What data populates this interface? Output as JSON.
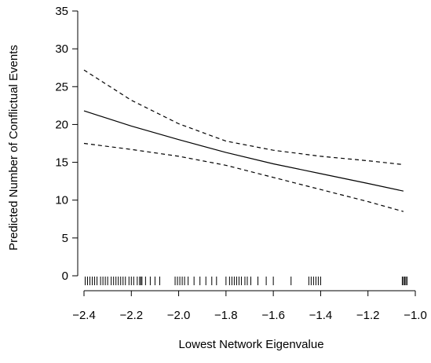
{
  "chart_data": {
    "type": "line",
    "title": "",
    "xlabel": "Lowest Network Eigenvalue",
    "ylabel": "Predicted Number of Conflictual Events",
    "xlim": [
      -2.45,
      -0.98
    ],
    "ylim": [
      0,
      35
    ],
    "grid": false,
    "legend": "none",
    "x_ticks": [
      -2.4,
      -2.2,
      -2.0,
      -1.8,
      -1.6,
      -1.4,
      -1.2,
      -1.0
    ],
    "x_tick_labels": [
      "−2.4",
      "−2.2",
      "−2.0",
      "−1.8",
      "−1.6",
      "−1.4",
      "−1.2",
      "−1.0"
    ],
    "y_ticks": [
      0,
      5,
      10,
      15,
      20,
      25,
      30,
      35
    ],
    "y_tick_labels": [
      "0",
      "5",
      "10",
      "15",
      "20",
      "25",
      "30",
      "35"
    ],
    "series": [
      {
        "style": "solid",
        "x": [
          -2.4,
          -2.2,
          -2.0,
          -1.8,
          -1.6,
          -1.4,
          -1.2,
          -1.05
        ],
        "y": [
          21.8,
          19.8,
          18.0,
          16.3,
          14.8,
          13.5,
          12.2,
          11.2
        ]
      },
      {
        "style": "dashed",
        "x": [
          -2.4,
          -2.2,
          -2.0,
          -1.8,
          -1.6,
          -1.4,
          -1.2,
          -1.05
        ],
        "y": [
          27.2,
          23.2,
          20.1,
          17.8,
          16.6,
          15.8,
          15.2,
          14.7
        ]
      },
      {
        "style": "dashed",
        "x": [
          -2.4,
          -2.2,
          -2.0,
          -1.8,
          -1.6,
          -1.4,
          -1.2,
          -1.05
        ],
        "y": [
          17.5,
          16.7,
          15.8,
          14.6,
          13.0,
          11.4,
          9.8,
          8.5
        ]
      }
    ],
    "rug": [
      -2.395,
      -2.385,
      -2.375,
      -2.365,
      -2.355,
      -2.345,
      -2.33,
      -2.32,
      -2.31,
      -2.3,
      -2.285,
      -2.275,
      -2.265,
      -2.255,
      -2.245,
      -2.235,
      -2.225,
      -2.21,
      -2.2,
      -2.19,
      -2.175,
      -2.165,
      -2.16,
      -2.155,
      -2.14,
      -2.12,
      -2.1,
      -2.08,
      -2.015,
      -2.005,
      -1.995,
      -1.985,
      -1.975,
      -1.96,
      -1.935,
      -1.91,
      -1.885,
      -1.86,
      -1.84,
      -1.8,
      -1.785,
      -1.775,
      -1.765,
      -1.755,
      -1.745,
      -1.735,
      -1.72,
      -1.71,
      -1.695,
      -1.665,
      -1.63,
      -1.6,
      -1.525,
      -1.45,
      -1.44,
      -1.43,
      -1.42,
      -1.41,
      -1.4,
      -1.055,
      -1.05,
      -1.045,
      -1.04,
      -1.035
    ]
  }
}
